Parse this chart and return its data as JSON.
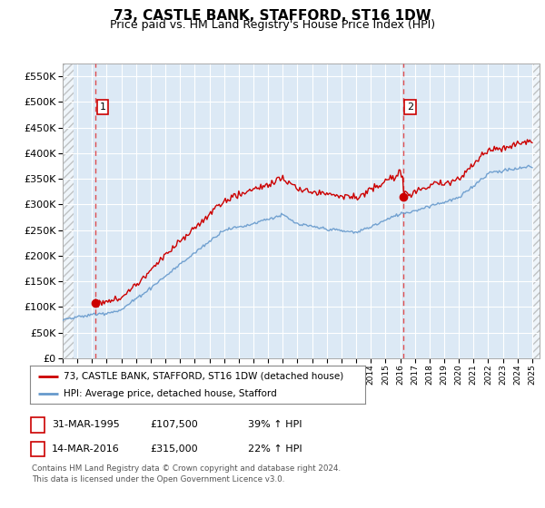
{
  "title": "73, CASTLE BANK, STAFFORD, ST16 1DW",
  "subtitle": "Price paid vs. HM Land Registry's House Price Index (HPI)",
  "title_fontsize": 11,
  "subtitle_fontsize": 9,
  "background_color": "#ffffff",
  "plot_bg_color": "#dce9f5",
  "grid_color": "#ffffff",
  "red_line_color": "#cc0000",
  "blue_line_color": "#6699cc",
  "dashed_line_color": "#dd3333",
  "marker_color": "#cc0000",
  "ylim": [
    0,
    575000
  ],
  "yticks": [
    0,
    50000,
    100000,
    150000,
    200000,
    250000,
    300000,
    350000,
    400000,
    450000,
    500000,
    550000
  ],
  "ytick_labels": [
    "£0",
    "£50K",
    "£100K",
    "£150K",
    "£200K",
    "£250K",
    "£300K",
    "£350K",
    "£400K",
    "£450K",
    "£500K",
    "£550K"
  ],
  "xmin": 1993,
  "xmax": 2025.5,
  "point1_x": 1995.25,
  "point1_y": 107500,
  "point1_label": "1",
  "point2_x": 2016.2,
  "point2_y": 315000,
  "point2_label": "2",
  "legend_line1": "73, CASTLE BANK, STAFFORD, ST16 1DW (detached house)",
  "legend_line2": "HPI: Average price, detached house, Stafford",
  "footer": "Contains HM Land Registry data © Crown copyright and database right 2024.\nThis data is licensed under the Open Government Licence v3.0."
}
